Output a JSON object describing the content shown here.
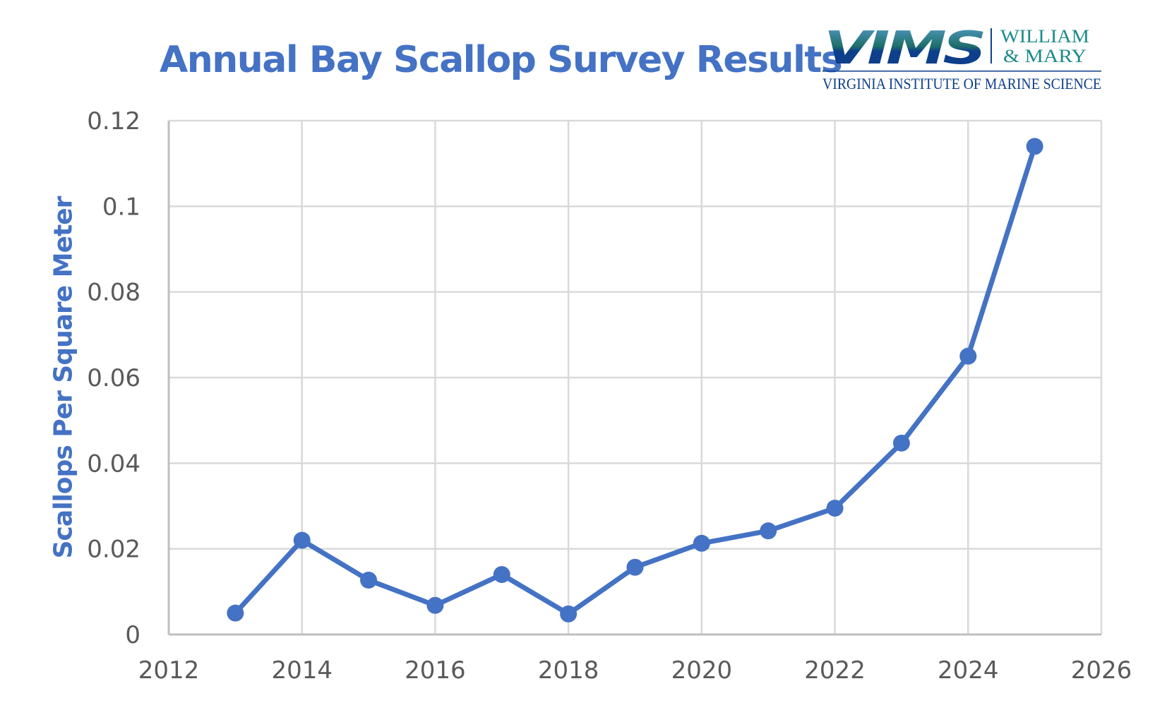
{
  "title": "Annual Bay Scallop Survey Results",
  "logo": {
    "mark": "VIMS",
    "line1": "William",
    "line2": "& Mary",
    "subtitle": "Virginia Institute of Marine Science"
  },
  "colors": {
    "series": "#4472c4",
    "grid": "#d9d9d9",
    "axis_text": "#595959",
    "logo_blue": "#0d3f8a",
    "logo_teal": "#1b8a8a"
  },
  "chart_data": {
    "type": "line",
    "title": "Annual Bay Scallop Survey Results",
    "xlabel": "",
    "ylabel": "Scallops Per Square Meter",
    "xlim": [
      2012,
      2026
    ],
    "ylim": [
      0,
      0.12
    ],
    "xticks": [
      "2012",
      "2014",
      "2016",
      "2018",
      "2020",
      "2022",
      "2024",
      "2026"
    ],
    "yticks": [
      "0",
      "0.02",
      "0.04",
      "0.06",
      "0.08",
      "0.1",
      "0.12"
    ],
    "grid": true,
    "legend": null,
    "x": [
      2013,
      2014,
      2015,
      2016,
      2017,
      2018,
      2019,
      2020,
      2021,
      2022,
      2023,
      2024,
      2025
    ],
    "series": [
      {
        "name": "Scallops Per Square Meter",
        "values": [
          0.005,
          0.022,
          0.0127,
          0.0068,
          0.014,
          0.0048,
          0.0157,
          0.0213,
          0.0242,
          0.0295,
          0.0447,
          0.065,
          0.114
        ]
      }
    ]
  }
}
